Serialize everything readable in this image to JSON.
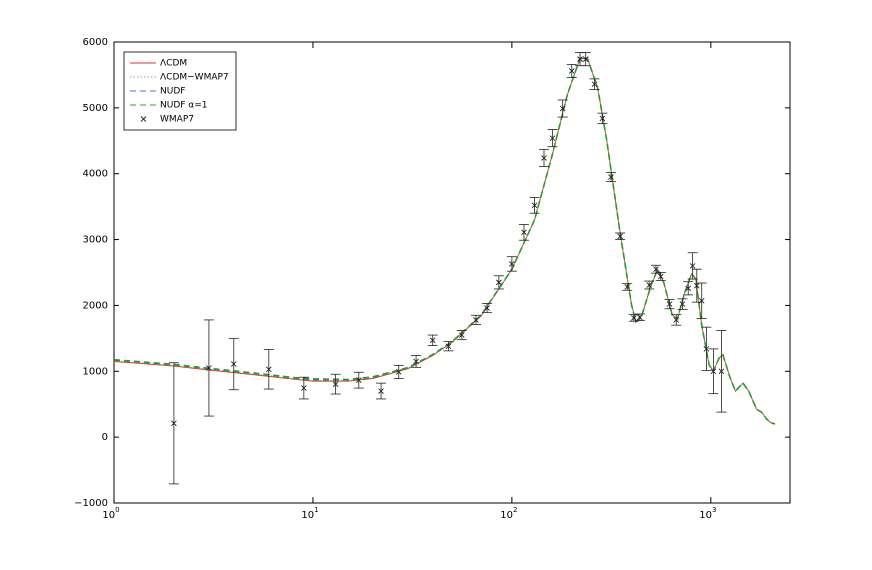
{
  "chart_data": {
    "type": "line",
    "xscale": "log",
    "xlim": [
      1,
      2500
    ],
    "ylim": [
      -1000,
      6000
    ],
    "xticks": [
      {
        "value": 1,
        "label": "10",
        "exponent": "0"
      },
      {
        "value": 10,
        "label": "10",
        "exponent": "1"
      },
      {
        "value": 100,
        "label": "10",
        "exponent": "2"
      },
      {
        "value": 1000,
        "label": "10",
        "exponent": "3"
      }
    ],
    "yticks": [
      {
        "value": -1000,
        "label": "−1000"
      },
      0,
      1000,
      2000,
      3000,
      4000,
      5000,
      6000
    ],
    "legend": "upper left",
    "x": [
      1,
      2,
      3,
      5,
      8,
      10,
      15,
      20,
      30,
      40,
      50,
      70,
      100,
      130,
      160,
      190,
      220,
      240,
      270,
      300,
      350,
      400,
      420,
      450,
      500,
      540,
      580,
      640,
      680,
      740,
      800,
      840,
      900,
      980,
      1030,
      1100,
      1150,
      1250,
      1330,
      1450,
      1550,
      1700,
      1800,
      1900,
      2000,
      2100
    ],
    "series": [
      {
        "name": "ΛCDM",
        "color": "#e0302a",
        "style": "solid",
        "values": [
          1150,
          1080,
          1020,
          950,
          880,
          850,
          850,
          890,
          1040,
          1240,
          1440,
          1840,
          2550,
          3300,
          4300,
          5200,
          5750,
          5750,
          5300,
          4500,
          3100,
          2000,
          1750,
          1850,
          2300,
          2550,
          2350,
          1850,
          1800,
          2200,
          2480,
          2400,
          1700,
          1100,
          1000,
          1200,
          1250,
          900,
          700,
          820,
          700,
          420,
          380,
          280,
          220,
          200
        ]
      },
      {
        "name": "ΛCDM−WMAP7",
        "color": "#8aa88a",
        "style": "dotted",
        "values": [
          1160,
          1090,
          1030,
          960,
          890,
          860,
          860,
          900,
          1050,
          1250,
          1450,
          1850,
          2550,
          3300,
          4300,
          5200,
          5750,
          5750,
          5300,
          4500,
          3100,
          2000,
          1750,
          1850,
          2300,
          2550,
          2350,
          1850,
          1800,
          2200,
          2480,
          2400,
          1700,
          1100,
          1000,
          1200,
          1250,
          900,
          700,
          820,
          700,
          420,
          380,
          280,
          220,
          200
        ]
      },
      {
        "name": "NUDF",
        "color": "#4a6fc0",
        "style": "dashed",
        "values": [
          1180,
          1110,
          1050,
          980,
          910,
          890,
          880,
          920,
          1060,
          1260,
          1450,
          1850,
          2550,
          3300,
          4300,
          5200,
          5750,
          5750,
          5300,
          4500,
          3100,
          2000,
          1750,
          1850,
          2300,
          2550,
          2350,
          1850,
          1800,
          2200,
          2480,
          2400,
          1700,
          1100,
          1000,
          1200,
          1250,
          900,
          700,
          820,
          700,
          420,
          380,
          280,
          220,
          200
        ]
      },
      {
        "name": "NUDF α=1",
        "color": "#22a022",
        "style": "dashed",
        "values": [
          1170,
          1100,
          1040,
          970,
          900,
          870,
          870,
          910,
          1050,
          1250,
          1450,
          1850,
          2550,
          3300,
          4300,
          5200,
          5750,
          5750,
          5300,
          4500,
          3100,
          2000,
          1750,
          1850,
          2300,
          2550,
          2350,
          1850,
          1800,
          2200,
          2480,
          2400,
          1700,
          1100,
          1000,
          1200,
          1250,
          900,
          700,
          820,
          700,
          420,
          380,
          280,
          220,
          200
        ]
      },
      {
        "name": "WMAP7",
        "color": "#222222",
        "style": "errorbar",
        "x": [
          2,
          3,
          4,
          6,
          9,
          13,
          17,
          22,
          27,
          33,
          40,
          48,
          56,
          66,
          75,
          86,
          100,
          115,
          130,
          145,
          160,
          180,
          200,
          220,
          235,
          260,
          285,
          315,
          350,
          380,
          410,
          440,
          490,
          530,
          560,
          620,
          670,
          720,
          770,
          810,
          850,
          900,
          950,
          1030,
          1130
        ],
        "values": [
          210,
          1050,
          1110,
          1030,
          745,
          805,
          865,
          700,
          990,
          1150,
          1470,
          1380,
          1550,
          1780,
          1960,
          2350,
          2630,
          3110,
          3520,
          4240,
          4540,
          4990,
          5560,
          5740,
          5740,
          5360,
          4840,
          3950,
          3050,
          2280,
          1810,
          1820,
          2310,
          2550,
          2440,
          2020,
          1780,
          2020,
          2260,
          2600,
          2300,
          2070,
          1340,
          1000,
          1000
        ],
        "errors": [
          920,
          730,
          390,
          300,
          165,
          150,
          120,
          120,
          100,
          90,
          80,
          70,
          70,
          70,
          70,
          100,
          110,
          120,
          120,
          130,
          130,
          130,
          100,
          100,
          100,
          80,
          80,
          70,
          50,
          50,
          50,
          50,
          60,
          60,
          60,
          70,
          80,
          80,
          100,
          200,
          250,
          270,
          330,
          340,
          620
        ]
      }
    ]
  }
}
